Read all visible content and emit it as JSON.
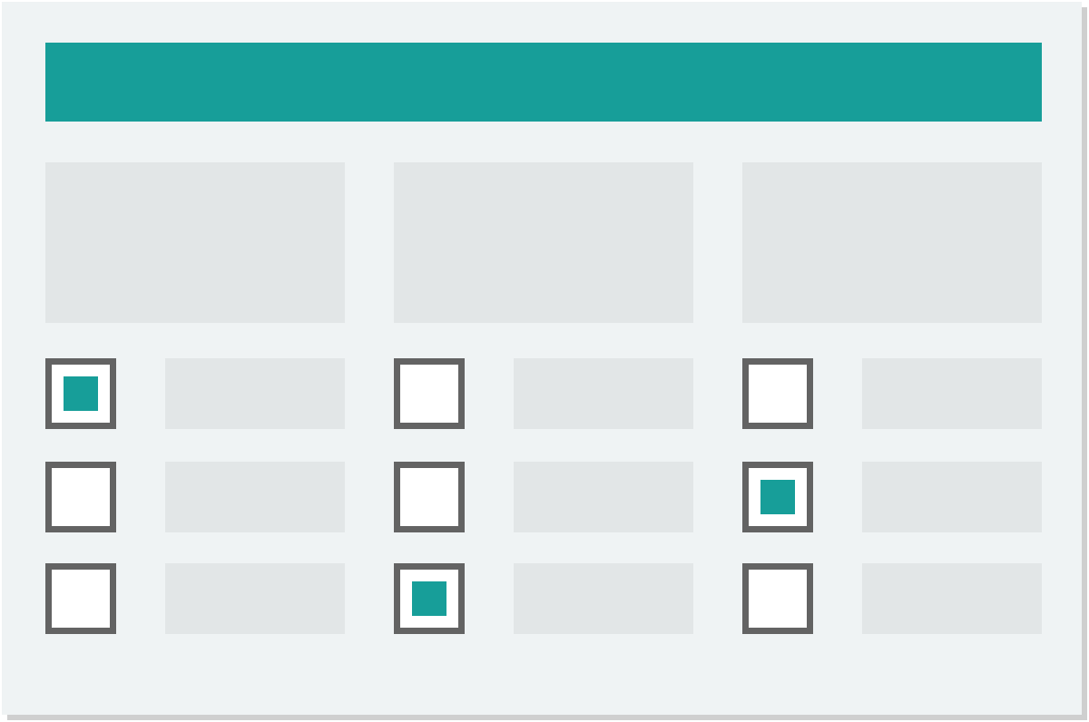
{
  "colors": {
    "accent": "#179e99",
    "card_background": "#eff3f4",
    "placeholder": "#e2e6e7",
    "checkbox_border": "#636363",
    "checkbox_fill": "#ffffff"
  },
  "header": {
    "title": ""
  },
  "panels": [
    {
      "label": ""
    },
    {
      "label": ""
    },
    {
      "label": ""
    }
  ],
  "options": [
    {
      "column": 1,
      "row": 1,
      "checked": true,
      "label": ""
    },
    {
      "column": 1,
      "row": 2,
      "checked": false,
      "label": ""
    },
    {
      "column": 1,
      "row": 3,
      "checked": false,
      "label": ""
    },
    {
      "column": 2,
      "row": 1,
      "checked": false,
      "label": ""
    },
    {
      "column": 2,
      "row": 2,
      "checked": false,
      "label": ""
    },
    {
      "column": 2,
      "row": 3,
      "checked": true,
      "label": ""
    },
    {
      "column": 3,
      "row": 1,
      "checked": false,
      "label": ""
    },
    {
      "column": 3,
      "row": 2,
      "checked": true,
      "label": ""
    },
    {
      "column": 3,
      "row": 3,
      "checked": false,
      "label": ""
    }
  ]
}
